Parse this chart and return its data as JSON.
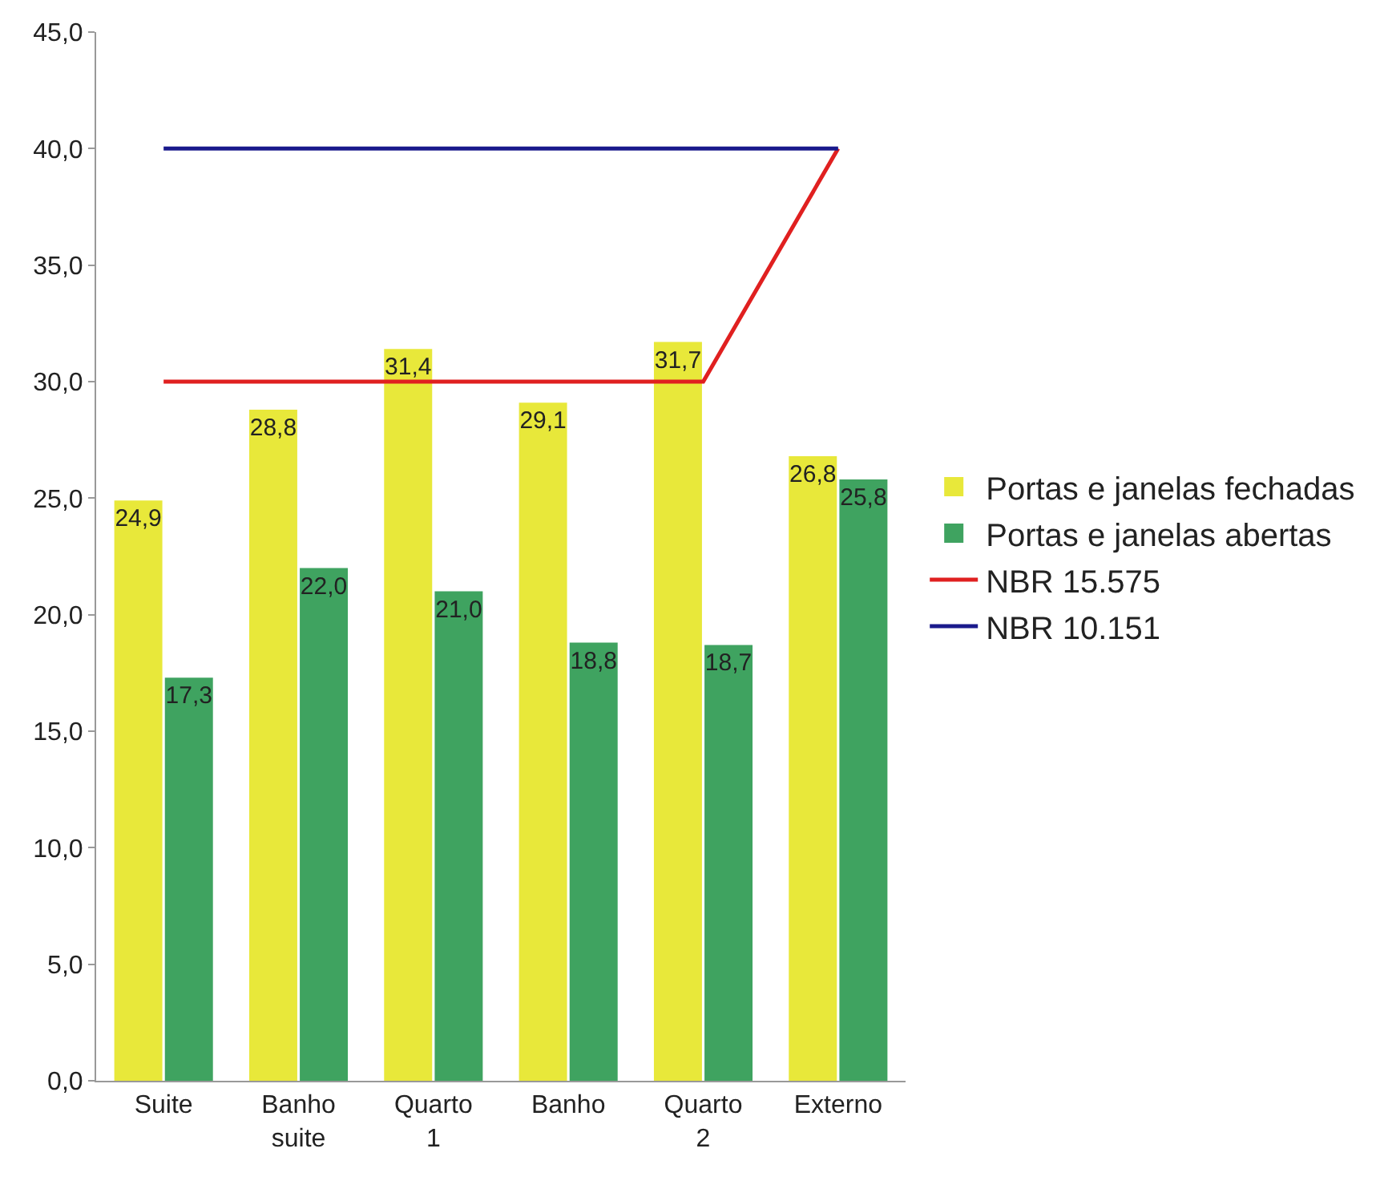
{
  "chart_data": {
    "type": "bar",
    "categories": [
      "Suite",
      "Banho suite",
      "Quarto 1",
      "Banho",
      "Quarto 2",
      "Externo"
    ],
    "series": [
      {
        "name": "Portas e janelas fechadas",
        "color": "#e8e83a",
        "values": [
          24.9,
          28.8,
          31.4,
          29.1,
          31.7,
          26.8
        ],
        "value_labels": [
          "24,9",
          "28,8",
          "31,4",
          "29,1",
          "31,7",
          "26,8"
        ]
      },
      {
        "name": "Portas e janelas abertas",
        "color": "#3fa360",
        "values": [
          17.3,
          22.0,
          21.0,
          18.8,
          18.7,
          25.8
        ],
        "value_labels": [
          "17,3",
          "22,0",
          "21,0",
          "18,8",
          "18,7",
          "25,8"
        ]
      },
      {
        "name": "NBR 15.575",
        "type": "line",
        "color": "#e02020",
        "values": [
          30,
          30,
          30,
          30,
          30,
          40
        ]
      },
      {
        "name": "NBR 10.151",
        "type": "line",
        "color": "#1a1a8c",
        "values": [
          40,
          40,
          40,
          40,
          40,
          40
        ]
      }
    ],
    "ylim": [
      0,
      45
    ],
    "yticks": [
      {
        "value": 0,
        "label": "0,0"
      },
      {
        "value": 5,
        "label": "5,0"
      },
      {
        "value": 10,
        "label": "10,0"
      },
      {
        "value": 15,
        "label": "15,0"
      },
      {
        "value": 20,
        "label": "20,0"
      },
      {
        "value": 25,
        "label": "25,0"
      },
      {
        "value": 30,
        "label": "30,0"
      },
      {
        "value": 35,
        "label": "35,0"
      },
      {
        "value": 40,
        "label": "40,0"
      },
      {
        "value": 45,
        "label": "45,0"
      }
    ],
    "grid": false,
    "legend": "right",
    "marker": "none",
    "line_style": "solid"
  }
}
